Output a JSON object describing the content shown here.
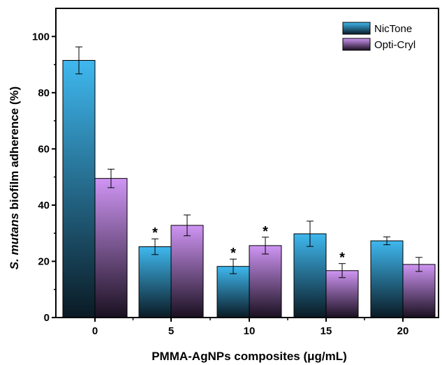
{
  "chart_data": {
    "type": "bar",
    "categories": [
      "0",
      "5",
      "10",
      "15",
      "20"
    ],
    "series": [
      {
        "name": "NicTone",
        "values": [
          91.5,
          25.2,
          18.2,
          29.8,
          27.3
        ],
        "errors": [
          4.8,
          2.8,
          2.6,
          4.5,
          1.4
        ],
        "significant": [
          false,
          true,
          true,
          false,
          false
        ],
        "color_top": "#3fb8ef",
        "color_bottom": "#0a1a24"
      },
      {
        "name": "Opti-Cryl",
        "values": [
          49.5,
          32.8,
          25.6,
          16.7,
          18.9
        ],
        "errors": [
          3.3,
          3.7,
          3.0,
          2.5,
          2.5
        ],
        "significant": [
          false,
          false,
          true,
          true,
          false
        ],
        "color_top": "#cf95f4",
        "color_bottom": "#1a1020"
      }
    ],
    "significance_marker": "*",
    "xlabel": "PMMA-AgNPs composites (μg/mL)",
    "ylabel_prefix": "S. mutans",
    "ylabel_suffix": " biofilm adherence (%)",
    "ylim": [
      0,
      110
    ],
    "yticks": [
      "0",
      "20",
      "40",
      "60",
      "80",
      "100"
    ],
    "legend_position": "top-right",
    "grid": false
  }
}
